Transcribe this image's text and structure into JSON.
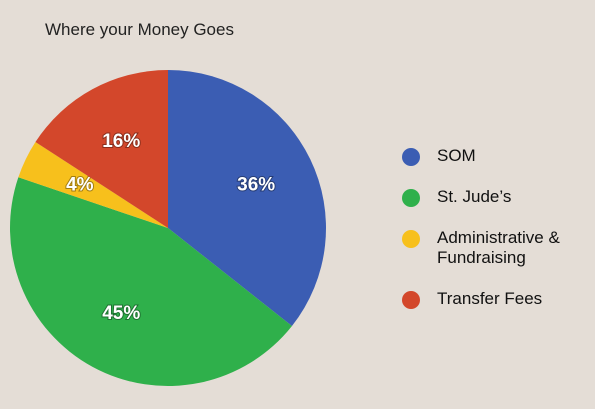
{
  "chart_data": {
    "type": "pie",
    "title": "Where your Money Goes",
    "categories": [
      "SOM",
      "St. Jude’s",
      "Administrative & Fundraising",
      "Transfer Fees"
    ],
    "values": [
      36,
      45,
      4,
      16
    ],
    "value_labels": [
      "36%",
      "45%",
      "4%",
      "16%"
    ],
    "colors": [
      "#3b5db3",
      "#2fb04b",
      "#f7c01c",
      "#d3472b"
    ]
  }
}
